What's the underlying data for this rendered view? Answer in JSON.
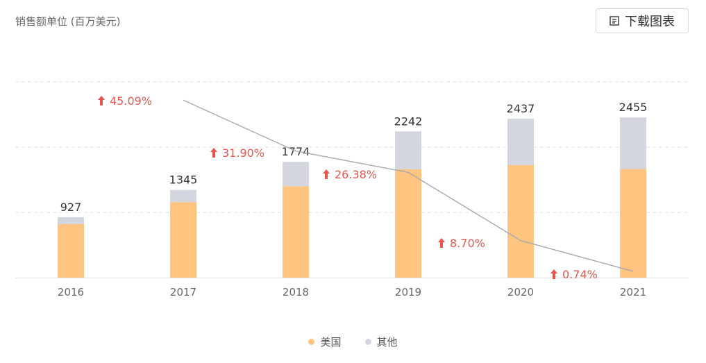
{
  "header": {
    "unit_label": "销售额单位 (百万美元)",
    "download_label": "下载图表"
  },
  "colors": {
    "usa": "#ffc580",
    "other": "#d3d6de",
    "line": "#a4a8b2",
    "growth": "#e8554e",
    "grid": "#e2e2e2",
    "axis": "#dddddd"
  },
  "chart_data": {
    "type": "bar",
    "stacked": true,
    "categories": [
      "2016",
      "2017",
      "2018",
      "2019",
      "2020",
      "2021"
    ],
    "series": [
      {
        "name": "美国",
        "values": [
          820,
          1155,
          1400,
          1660,
          1725,
          1665
        ]
      },
      {
        "name": "其他",
        "values": [
          107,
          190,
          374,
          582,
          712,
          790
        ]
      }
    ],
    "totals": [
      "927",
      "1345",
      "1774",
      "2242",
      "2437",
      "2455"
    ],
    "growth": {
      "type": "line",
      "labels": [
        "45.09%",
        "31.90%",
        "26.38%",
        "8.70%",
        "0.74%"
      ],
      "values": [
        45.09,
        31.9,
        26.38,
        8.7,
        0.74
      ]
    },
    "ylim": [
      0,
      3000
    ],
    "grid": true,
    "legend_position": "bottom-center"
  }
}
